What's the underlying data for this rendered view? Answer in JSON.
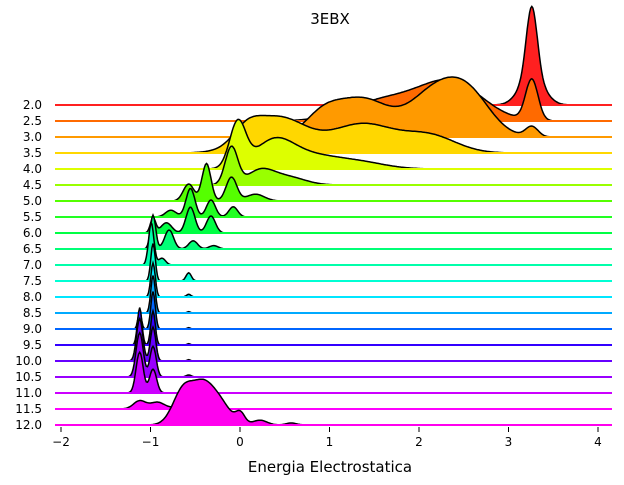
{
  "chart_data": {
    "type": "ridgeline",
    "title": "3EBX",
    "xlabel": "Energia Electrostatica",
    "ylabel": "",
    "xlim": [
      -2.1,
      4.15
    ],
    "xticks": [
      -2,
      -1,
      0,
      1,
      2,
      3,
      4
    ],
    "grid": false,
    "legend": "none",
    "series": [
      {
        "label": "2.0",
        "color": "#ff2020",
        "components": [
          [
            3.25,
            0.06,
            1.0
          ],
          [
            3.25,
            0.13,
            0.45
          ]
        ]
      },
      {
        "label": "2.5",
        "color": "#ff6a00",
        "components": [
          [
            3.25,
            0.07,
            0.6
          ],
          [
            2.35,
            0.35,
            0.55
          ],
          [
            1.6,
            0.4,
            0.3
          ]
        ]
      },
      {
        "label": "3.0",
        "color": "#ff9a00",
        "components": [
          [
            2.15,
            0.28,
            0.62
          ],
          [
            2.55,
            0.25,
            0.55
          ],
          [
            1.35,
            0.3,
            0.55
          ],
          [
            0.9,
            0.2,
            0.28
          ],
          [
            3.25,
            0.07,
            0.15
          ]
        ]
      },
      {
        "label": "3.5",
        "color": "#ffd700",
        "components": [
          [
            0.4,
            0.32,
            0.52
          ],
          [
            1.35,
            0.35,
            0.42
          ],
          [
            2.1,
            0.3,
            0.25
          ],
          [
            0.05,
            0.15,
            0.2
          ]
        ]
      },
      {
        "label": "4.0",
        "color": "#ddff00",
        "components": [
          [
            -0.05,
            0.09,
            0.65
          ],
          [
            0.35,
            0.22,
            0.38
          ],
          [
            0.75,
            0.3,
            0.18
          ],
          [
            1.3,
            0.3,
            0.1
          ]
        ]
      },
      {
        "label": "4.5",
        "color": "#99ff00",
        "components": [
          [
            -0.12,
            0.07,
            0.55
          ],
          [
            0.2,
            0.15,
            0.2
          ],
          [
            0.5,
            0.2,
            0.12
          ]
        ]
      },
      {
        "label": "5.0",
        "color": "#55ff00",
        "components": [
          [
            -0.4,
            0.05,
            0.55
          ],
          [
            -0.12,
            0.06,
            0.35
          ],
          [
            0.15,
            0.1,
            0.1
          ],
          [
            -0.6,
            0.06,
            0.25
          ]
        ]
      },
      {
        "label": "5.5",
        "color": "#22ff22",
        "components": [
          [
            -0.58,
            0.05,
            0.42
          ],
          [
            -0.35,
            0.05,
            0.25
          ],
          [
            -0.1,
            0.05,
            0.15
          ],
          [
            -0.8,
            0.06,
            0.1
          ]
        ]
      },
      {
        "label": "6.0",
        "color": "#00ff44",
        "components": [
          [
            -0.58,
            0.05,
            0.38
          ],
          [
            -0.35,
            0.05,
            0.25
          ],
          [
            -0.85,
            0.06,
            0.15
          ],
          [
            -1.0,
            0.03,
            0.22
          ]
        ]
      },
      {
        "label": "6.5",
        "color": "#00ff77",
        "components": [
          [
            -1.0,
            0.03,
            0.5
          ],
          [
            -0.82,
            0.05,
            0.28
          ],
          [
            -0.55,
            0.05,
            0.12
          ],
          [
            -0.32,
            0.05,
            0.05
          ]
        ]
      },
      {
        "label": "7.0",
        "color": "#00ffaa",
        "components": [
          [
            -1.02,
            0.03,
            0.62
          ],
          [
            -0.9,
            0.04,
            0.1
          ]
        ]
      },
      {
        "label": "7.5",
        "color": "#00ffd4",
        "components": [
          [
            -1.0,
            0.025,
            0.55
          ],
          [
            -0.6,
            0.03,
            0.12
          ]
        ]
      },
      {
        "label": "8.0",
        "color": "#00e6ff",
        "components": [
          [
            -1.0,
            0.025,
            0.5
          ],
          [
            -0.6,
            0.025,
            0.04
          ]
        ]
      },
      {
        "label": "8.5",
        "color": "#00aaff",
        "components": [
          [
            -1.0,
            0.025,
            0.55
          ],
          [
            -0.6,
            0.02,
            0.02
          ]
        ]
      },
      {
        "label": "9.0",
        "color": "#0066ff",
        "components": [
          [
            -1.0,
            0.025,
            0.55
          ],
          [
            -1.15,
            0.02,
            0.25
          ],
          [
            -0.6,
            0.02,
            0.02
          ]
        ]
      },
      {
        "label": "9.5",
        "color": "#3300ff",
        "components": [
          [
            -1.15,
            0.025,
            0.55
          ],
          [
            -1.0,
            0.025,
            0.5
          ],
          [
            -0.6,
            0.02,
            0.02
          ]
        ]
      },
      {
        "label": "10.0",
        "color": "#6600ff",
        "components": [
          [
            -1.15,
            0.035,
            0.62
          ],
          [
            -1.0,
            0.03,
            0.5
          ],
          [
            -0.6,
            0.02,
            0.02
          ]
        ]
      },
      {
        "label": "10.5",
        "color": "#9900ff",
        "components": [
          [
            -1.15,
            0.04,
            0.65
          ],
          [
            -1.0,
            0.035,
            0.45
          ],
          [
            -0.6,
            0.03,
            0.03
          ]
        ]
      },
      {
        "label": "11.0",
        "color": "#cc00ff",
        "components": [
          [
            -1.15,
            0.04,
            0.6
          ],
          [
            -1.0,
            0.04,
            0.35
          ],
          [
            -0.6,
            0.04,
            0.05
          ]
        ]
      },
      {
        "label": "11.5",
        "color": "#ff00ff",
        "components": [
          [
            -1.15,
            0.07,
            0.12
          ],
          [
            -0.95,
            0.08,
            0.1
          ],
          [
            -0.6,
            0.1,
            0.12
          ]
        ]
      },
      {
        "label": "12.0",
        "color": "#ff00ee",
        "components": [
          [
            -0.65,
            0.12,
            0.55
          ],
          [
            -0.3,
            0.14,
            0.42
          ],
          [
            -0.45,
            0.1,
            0.3
          ],
          [
            -0.02,
            0.05,
            0.15
          ],
          [
            0.2,
            0.08,
            0.07
          ],
          [
            0.55,
            0.06,
            0.03
          ]
        ]
      }
    ]
  }
}
